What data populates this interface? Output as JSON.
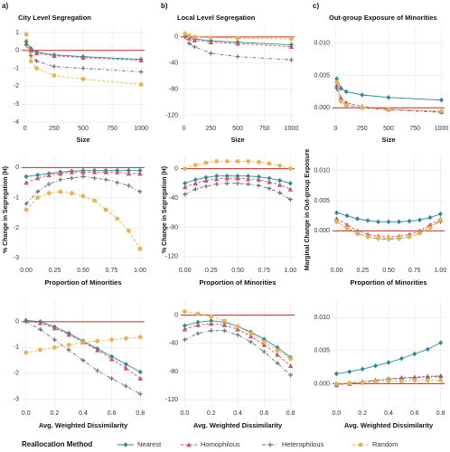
{
  "legend": {
    "title": "Reallocation Method",
    "items": [
      {
        "name": "Nearest",
        "color": "#2a8a94",
        "marker": "diamond",
        "dash": "none"
      },
      {
        "name": "Homophilous",
        "color": "#c9566f",
        "marker": "triangle",
        "dash": "3,2"
      },
      {
        "name": "Heterophilous",
        "color": "#6e6e78",
        "marker": "plus",
        "dash": "4,2,1,2"
      },
      {
        "name": "Random",
        "color": "#e8b44e",
        "marker": "circle",
        "dash": "3,2"
      }
    ]
  },
  "chart_data": [
    {
      "type": "line",
      "panel_label": "a)",
      "title": "City Level Segregation",
      "xlabel": "Size",
      "x": [
        10,
        50,
        100,
        250,
        500,
        1000
      ],
      "xlim": [
        -30,
        1030
      ],
      "xticks": [
        0,
        250,
        500,
        750,
        1000
      ],
      "ylim": [
        -4,
        1.3
      ],
      "yticks": [
        1,
        0,
        -1,
        -2,
        -3,
        -4
      ],
      "hline": 0,
      "grid": true,
      "series": [
        {
          "values": [
            0.5,
            0.1,
            -0.1,
            -0.25,
            -0.35,
            -0.5
          ]
        },
        {
          "values": [
            0.4,
            0.0,
            -0.15,
            -0.3,
            -0.4,
            -0.55
          ]
        },
        {
          "values": [
            0.3,
            -0.3,
            -0.6,
            -0.9,
            -1.0,
            -1.2
          ]
        },
        {
          "values": [
            0.9,
            -0.6,
            -1.0,
            -1.4,
            -1.6,
            -1.9
          ]
        }
      ]
    },
    {
      "type": "line",
      "panel_label": "b)",
      "title": "Local Level Segregation",
      "xlabel": "Size",
      "x": [
        10,
        50,
        100,
        250,
        500,
        1000
      ],
      "xlim": [
        -30,
        1030
      ],
      "xticks": [
        0,
        250,
        500,
        750,
        1000
      ],
      "ylim": [
        -130,
        15
      ],
      "yticks": [
        0,
        -40,
        -80,
        -120
      ],
      "hline": 0,
      "grid": true,
      "series": [
        {
          "values": [
            5,
            0,
            -3,
            -6,
            -8,
            -12
          ]
        },
        {
          "values": [
            3,
            -2,
            -5,
            -8,
            -10,
            -15
          ]
        },
        {
          "values": [
            0,
            -10,
            -15,
            -25,
            -30,
            -35
          ]
        },
        {
          "values": [
            5,
            2,
            0,
            -1,
            -2,
            -3
          ]
        }
      ]
    },
    {
      "type": "line",
      "panel_label": "c)",
      "title": "Out-group Exposure of Minorities",
      "xlabel": "Size",
      "x": [
        10,
        50,
        100,
        250,
        500,
        1000
      ],
      "xlim": [
        -30,
        1030
      ],
      "xticks": [
        0,
        250,
        500,
        750,
        1000
      ],
      "ylim": [
        -0.0022,
        0.0125
      ],
      "yticks": [
        {
          "value": 0,
          "label": "0.000"
        },
        {
          "value": 0.005,
          "label": "0.005"
        },
        {
          "value": 0.01,
          "label": "0.010"
        }
      ],
      "hline": 0,
      "grid": true,
      "series": [
        {
          "values": [
            0.0045,
            0.003,
            0.0025,
            0.002,
            0.0016,
            0.0012
          ]
        },
        {
          "values": [
            0.0035,
            0.0015,
            0.0008,
            0.0002,
            -0.0002,
            -0.0006
          ]
        },
        {
          "values": [
            0.003,
            0.001,
            0.0005,
            0.0,
            -0.0003,
            -0.0007
          ]
        },
        {
          "values": [
            0.004,
            0.001,
            0.0004,
            0.0,
            -0.0002,
            -0.0005
          ]
        }
      ]
    },
    {
      "type": "line",
      "xlabel": "Proportion of Minorities",
      "ylabel": "% Change in Segregation (H)",
      "x": [
        0,
        0.1,
        0.2,
        0.3,
        0.4,
        0.5,
        0.6,
        0.7,
        0.8,
        0.9,
        1.0
      ],
      "xlim": [
        -0.04,
        1.04
      ],
      "xticks": [
        {
          "value": 0,
          "label": "0.00"
        },
        {
          "value": 0.25,
          "label": "0.25"
        },
        {
          "value": 0.5,
          "label": "0.50"
        },
        {
          "value": 0.75,
          "label": "0.75"
        },
        {
          "value": 1,
          "label": "1.00"
        }
      ],
      "ylim": [
        -3.2,
        0.4
      ],
      "yticks": [
        0,
        -1,
        -2,
        -3
      ],
      "hline": 0,
      "grid": true,
      "series": [
        {
          "values": [
            -0.3,
            -0.25,
            -0.2,
            -0.15,
            -0.12,
            -0.1,
            -0.1,
            -0.1,
            -0.1,
            -0.1,
            -0.1
          ]
        },
        {
          "values": [
            -0.5,
            -0.35,
            -0.25,
            -0.2,
            -0.15,
            -0.15,
            -0.15,
            -0.15,
            -0.15,
            -0.2,
            -0.2
          ]
        },
        {
          "values": [
            -1.2,
            -0.8,
            -0.55,
            -0.4,
            -0.35,
            -0.3,
            -0.35,
            -0.4,
            -0.5,
            -0.6,
            -0.8
          ]
        },
        {
          "values": [
            -1.4,
            -1.0,
            -0.85,
            -0.8,
            -0.85,
            -0.95,
            -1.1,
            -1.4,
            -1.7,
            -2.1,
            -2.7
          ]
        }
      ]
    },
    {
      "type": "line",
      "xlabel": "Proportion of Minorities",
      "ylabel": "% Change in Segregation (H)",
      "x": [
        0,
        0.1,
        0.2,
        0.3,
        0.4,
        0.5,
        0.6,
        0.7,
        0.8,
        0.9,
        1.0
      ],
      "xlim": [
        -0.04,
        1.04
      ],
      "xticks": [
        {
          "value": 0,
          "label": "0.00"
        },
        {
          "value": 0.25,
          "label": "0.25"
        },
        {
          "value": 0.5,
          "label": "0.50"
        },
        {
          "value": 0.75,
          "label": "0.75"
        },
        {
          "value": 1,
          "label": "1.00"
        }
      ],
      "ylim": [
        -130,
        18
      ],
      "yticks": [
        0,
        -40,
        -80,
        -120
      ],
      "hline": 0,
      "grid": true,
      "series": [
        {
          "values": [
            -20,
            -15,
            -12,
            -10,
            -10,
            -10,
            -10,
            -11,
            -13,
            -16,
            -20
          ]
        },
        {
          "values": [
            -25,
            -20,
            -16,
            -14,
            -13,
            -13,
            -14,
            -15,
            -18,
            -22,
            -28
          ]
        },
        {
          "values": [
            -35,
            -28,
            -24,
            -21,
            -20,
            -20,
            -21,
            -23,
            -27,
            -33,
            -42
          ]
        },
        {
          "values": [
            0,
            5,
            8,
            10,
            10,
            10,
            10,
            9,
            7,
            4,
            0
          ]
        }
      ]
    },
    {
      "type": "line",
      "xlabel": "Proportion of Minorities",
      "ylabel": "Marginal Change in Out-group Exposure",
      "x": [
        0,
        0.1,
        0.2,
        0.3,
        0.4,
        0.5,
        0.6,
        0.7,
        0.8,
        0.9,
        1.0
      ],
      "xlim": [
        -0.04,
        1.04
      ],
      "xticks": [
        {
          "value": 0,
          "label": "0.00"
        },
        {
          "value": 0.25,
          "label": "0.25"
        },
        {
          "value": 0.5,
          "label": "0.50"
        },
        {
          "value": 0.75,
          "label": "0.75"
        },
        {
          "value": 1,
          "label": "1.00"
        }
      ],
      "ylim": [
        -0.0055,
        0.0125
      ],
      "yticks": [
        {
          "value": 0,
          "label": "0.000"
        },
        {
          "value": 0.005,
          "label": "0.005"
        },
        {
          "value": 0.01,
          "label": "0.010"
        }
      ],
      "hline": 0,
      "grid": true,
      "series": [
        {
          "values": [
            0.003,
            0.0025,
            0.002,
            0.0017,
            0.0015,
            0.0015,
            0.0015,
            0.0016,
            0.0018,
            0.0022,
            0.0028
          ]
        },
        {
          "values": [
            0.002,
            0.001,
            0.0,
            -0.0006,
            -0.0009,
            -0.001,
            -0.0009,
            -0.0006,
            0.0,
            0.001,
            0.002
          ]
        },
        {
          "values": [
            0.0015,
            0.0005,
            -0.0005,
            -0.001,
            -0.0013,
            -0.0014,
            -0.0013,
            -0.001,
            -0.0004,
            0.0008,
            0.0015
          ]
        },
        {
          "values": [
            0.0015,
            0.0005,
            -0.0004,
            -0.001,
            -0.0012,
            -0.0012,
            -0.0012,
            -0.001,
            -0.0004,
            0.0005,
            0.0018
          ]
        }
      ]
    },
    {
      "type": "line",
      "xlabel": "Avg. Weighted Dissimilarity",
      "x": [
        0,
        0.1,
        0.2,
        0.3,
        0.4,
        0.5,
        0.6,
        0.7,
        0.8
      ],
      "xlim": [
        -0.03,
        0.83
      ],
      "xticks": [
        {
          "value": 0,
          "label": "0.0"
        },
        {
          "value": 0.2,
          "label": "0.2"
        },
        {
          "value": 0.4,
          "label": "0.4"
        },
        {
          "value": 0.6,
          "label": "0.6"
        },
        {
          "value": 0.8,
          "label": "0.8"
        }
      ],
      "ylim": [
        -3.3,
        0.8
      ],
      "yticks": [
        0,
        -1,
        -2,
        -3
      ],
      "hline": 0,
      "grid": true,
      "series": [
        {
          "values": [
            0.05,
            0,
            -0.2,
            -0.45,
            -0.75,
            -1.05,
            -1.35,
            -1.65,
            -1.95
          ]
        },
        {
          "values": [
            0.05,
            -0.05,
            -0.25,
            -0.5,
            -0.8,
            -1.1,
            -1.45,
            -1.8,
            -2.2
          ]
        },
        {
          "values": [
            0.0,
            -0.3,
            -0.7,
            -1.1,
            -1.5,
            -1.9,
            -2.2,
            -2.5,
            -2.8
          ]
        },
        {
          "values": [
            -1.2,
            -1.1,
            -1.0,
            -0.9,
            -0.8,
            -0.75,
            -0.7,
            -0.65,
            -0.6
          ]
        }
      ]
    },
    {
      "type": "line",
      "xlabel": "Avg. Weighted Dissimilarity",
      "x": [
        0,
        0.1,
        0.2,
        0.3,
        0.4,
        0.5,
        0.6,
        0.7,
        0.8
      ],
      "xlim": [
        -0.03,
        0.83
      ],
      "xticks": [
        {
          "value": 0,
          "label": "0.0"
        },
        {
          "value": 0.2,
          "label": "0.2"
        },
        {
          "value": 0.4,
          "label": "0.4"
        },
        {
          "value": 0.6,
          "label": "0.6"
        },
        {
          "value": 0.8,
          "label": "0.8"
        }
      ],
      "ylim": [
        -130,
        20
      ],
      "yticks": [
        0,
        -40,
        -80,
        -120
      ],
      "hline": 0,
      "grid": true,
      "series": [
        {
          "values": [
            -15,
            -10,
            -8,
            -10,
            -16,
            -24,
            -34,
            -46,
            -60
          ]
        },
        {
          "values": [
            -20,
            -14,
            -12,
            -14,
            -20,
            -30,
            -42,
            -56,
            -72
          ]
        },
        {
          "values": [
            -35,
            -26,
            -22,
            -22,
            -28,
            -38,
            -52,
            -68,
            -85
          ]
        },
        {
          "values": [
            5,
            2,
            -2,
            -8,
            -16,
            -26,
            -38,
            -50,
            -62
          ]
        }
      ]
    },
    {
      "type": "line",
      "xlabel": "Avg. Weighted Dissimilarity",
      "x": [
        0,
        0.1,
        0.2,
        0.3,
        0.4,
        0.5,
        0.6,
        0.7,
        0.8
      ],
      "xlim": [
        -0.03,
        0.83
      ],
      "xticks": [
        {
          "value": 0,
          "label": "0.0"
        },
        {
          "value": 0.2,
          "label": "0.2"
        },
        {
          "value": 0.4,
          "label": "0.4"
        },
        {
          "value": 0.6,
          "label": "0.6"
        },
        {
          "value": 0.8,
          "label": "0.8"
        }
      ],
      "ylim": [
        -0.0035,
        0.0125
      ],
      "yticks": [
        {
          "value": 0,
          "label": "0.000"
        },
        {
          "value": 0.005,
          "label": "0.005"
        },
        {
          "value": 0.01,
          "label": "0.010"
        }
      ],
      "hline": 0,
      "grid": true,
      "series": [
        {
          "values": [
            0.0015,
            0.0018,
            0.0022,
            0.0027,
            0.0032,
            0.0038,
            0.0045,
            0.0052,
            0.0062
          ]
        },
        {
          "values": [
            -0.0002,
            0.0,
            0.0002,
            0.0005,
            0.0007,
            0.0009,
            0.001,
            0.0011,
            0.0012
          ]
        },
        {
          "values": [
            -0.0001,
            0.0001,
            0.0003,
            0.0005,
            0.0007,
            0.0008,
            0.0009,
            0.001,
            0.0011
          ]
        },
        {
          "values": [
            0.0,
            0.0001,
            0.0002,
            0.0003,
            0.0004,
            0.0004,
            0.0005,
            0.0005,
            0.0005
          ]
        }
      ]
    }
  ]
}
